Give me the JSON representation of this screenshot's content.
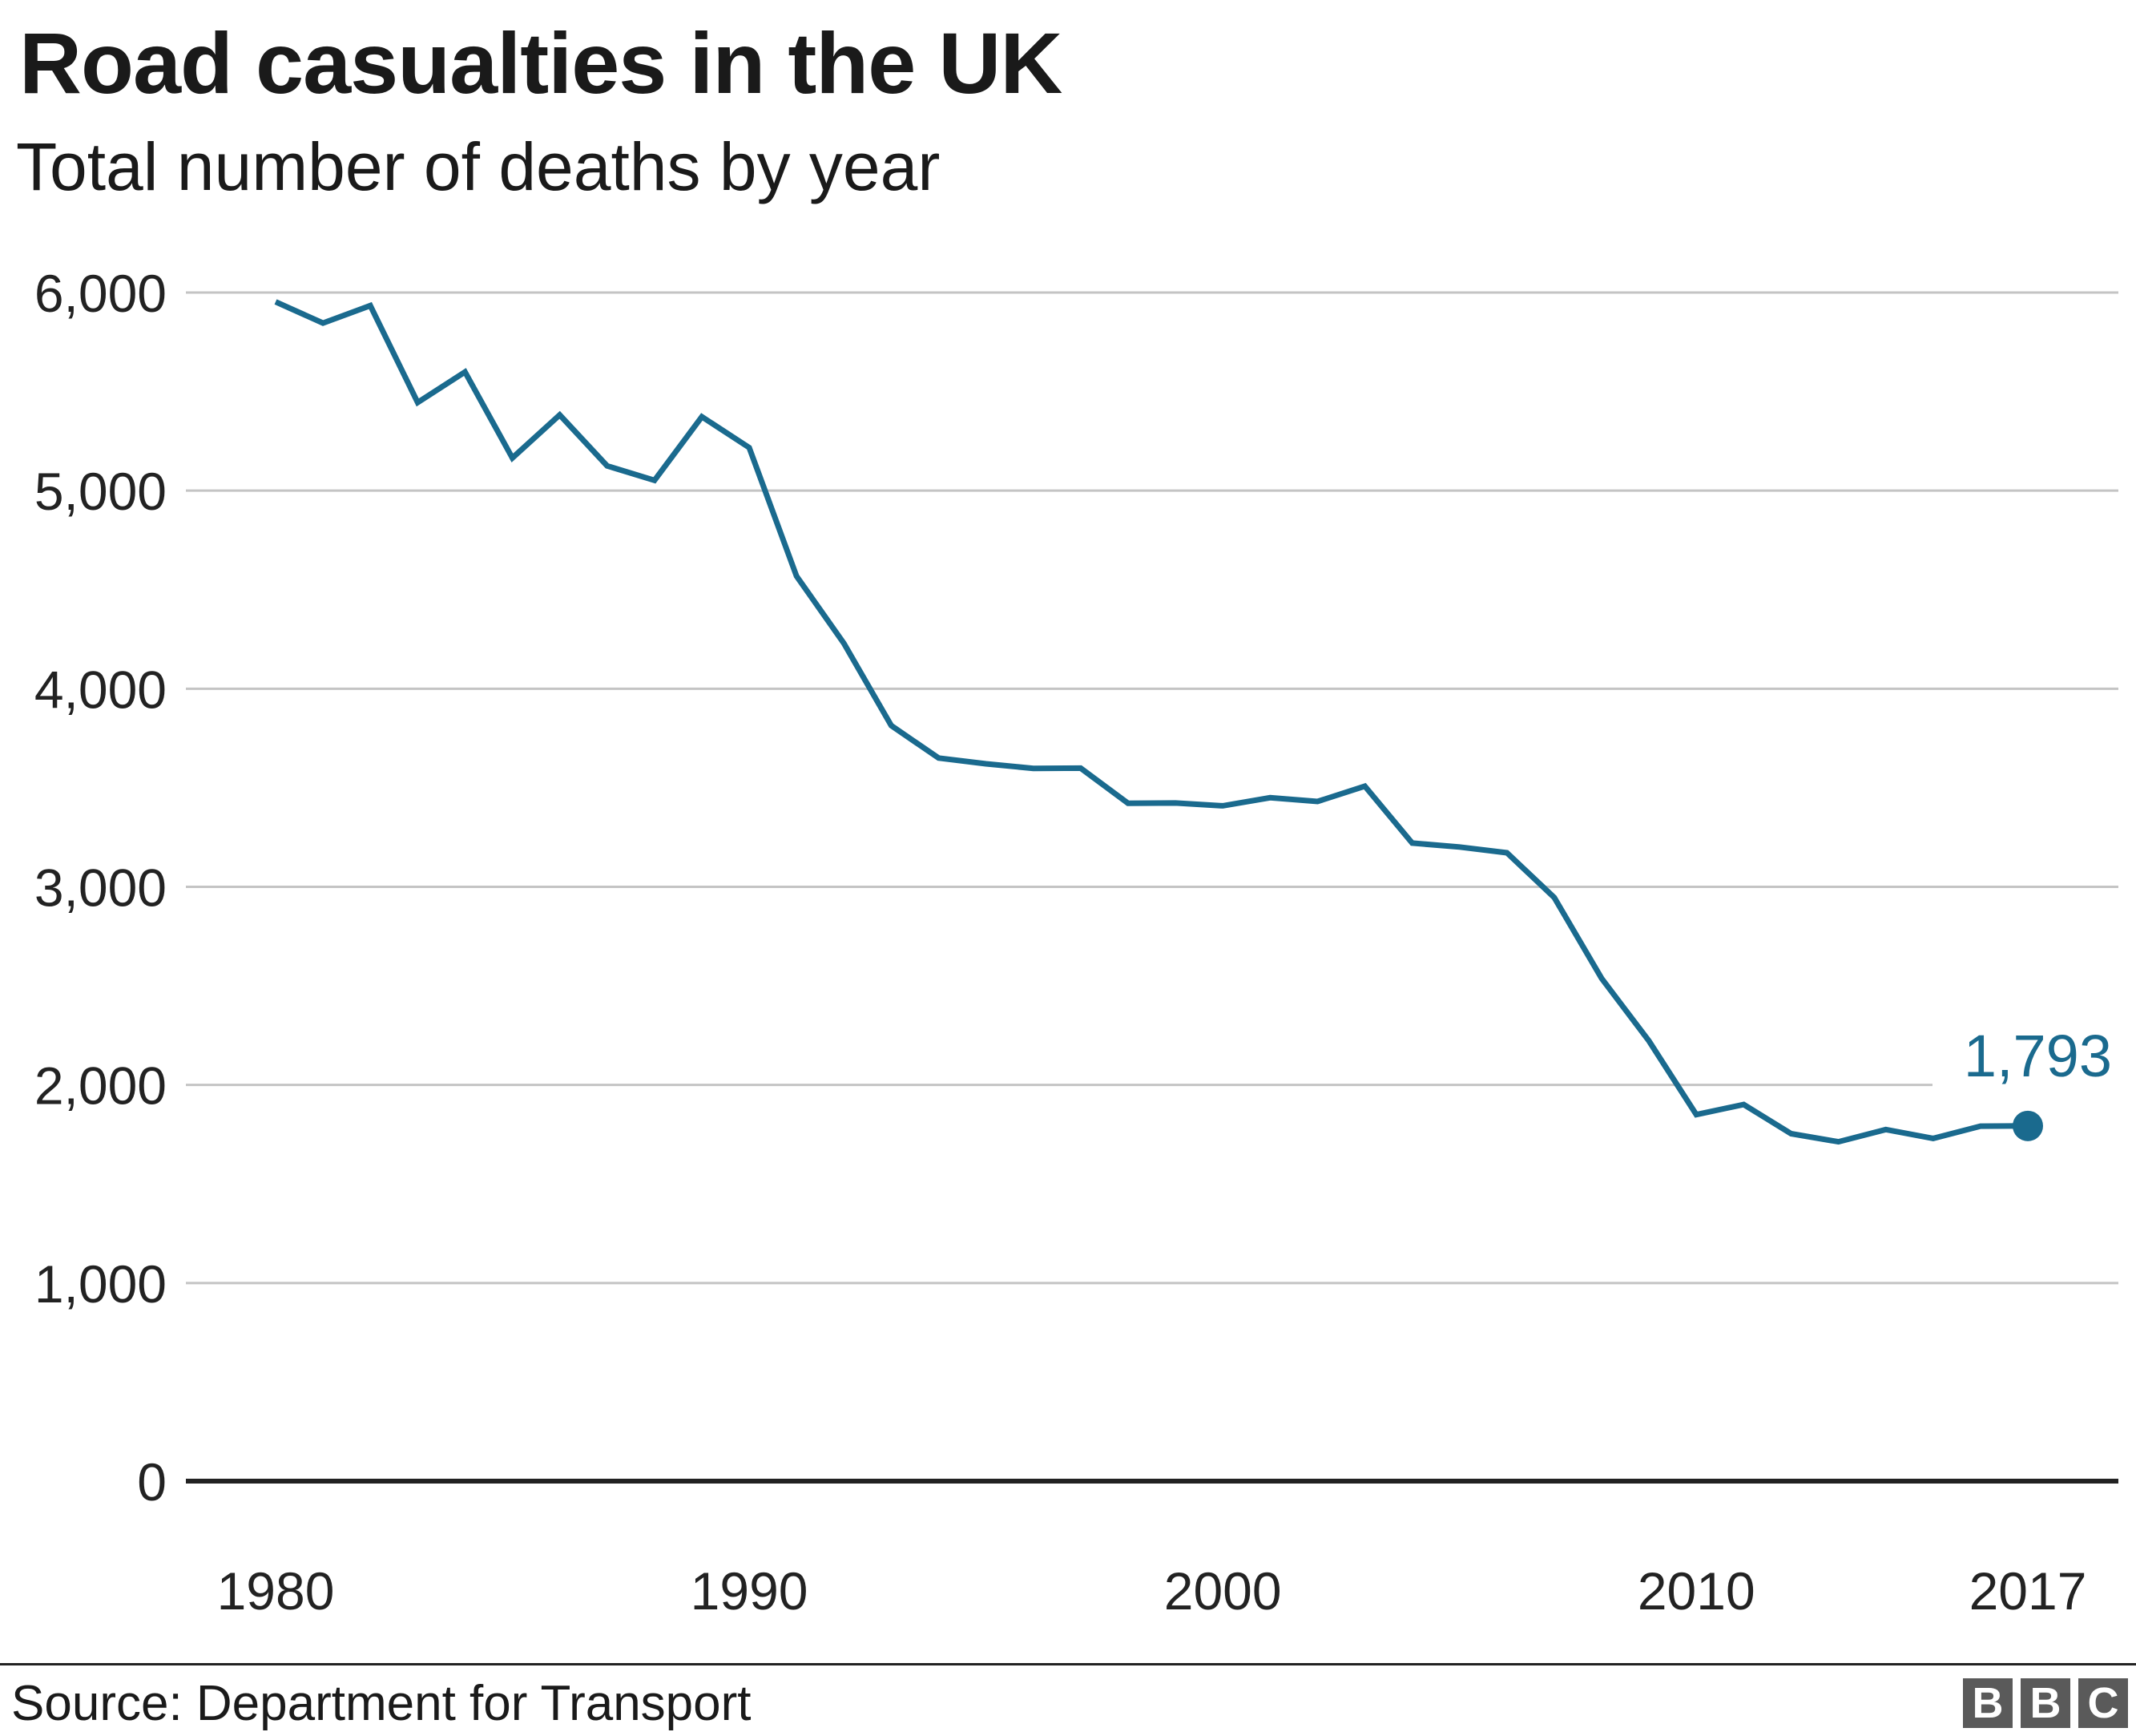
{
  "header": {
    "title": "Road casualties in the UK",
    "subtitle": "Total number of deaths by year"
  },
  "footer": {
    "source": "Source: Department for Transport",
    "logo_letters": [
      "B",
      "B",
      "C"
    ]
  },
  "colors": {
    "line": "#1a6a8e",
    "grid": "#c4c4c4",
    "baseline": "#222222",
    "logo": "#5a5a5a"
  },
  "chart_data": {
    "type": "line",
    "title": "Road casualties in the UK",
    "subtitle": "Total number of deaths by year",
    "xlabel": "",
    "ylabel": "",
    "xlim": [
      1980,
      2017
    ],
    "ylim": [
      0,
      6000
    ],
    "x_ticks": [
      1980,
      1990,
      2000,
      2010,
      2017
    ],
    "x_tick_labels": [
      "1980",
      "1990",
      "2000",
      "2010",
      "2017"
    ],
    "y_ticks": [
      0,
      1000,
      2000,
      3000,
      4000,
      5000,
      6000
    ],
    "y_tick_labels": [
      "0",
      "1,000",
      "2,000",
      "3,000",
      "4,000",
      "5,000",
      "6,000"
    ],
    "grid": true,
    "legend": "none",
    "series": [
      {
        "x": [
          1980,
          1981,
          1982,
          1983,
          1984,
          1985,
          1986,
          1987,
          1988,
          1989,
          1990,
          1991,
          1992,
          1993,
          1994,
          1995,
          1996,
          1997,
          1998,
          1999,
          2000,
          2001,
          2002,
          2003,
          2004,
          2005,
          2006,
          2007,
          2008,
          2009,
          2010,
          2011,
          2012,
          2013,
          2014,
          2015,
          2016,
          2017
        ],
        "values": [
          5953,
          5846,
          5934,
          5445,
          5599,
          5165,
          5382,
          5125,
          5052,
          5373,
          5217,
          4568,
          4229,
          3814,
          3650,
          3621,
          3598,
          3599,
          3422,
          3423,
          3409,
          3450,
          3431,
          3508,
          3221,
          3201,
          3172,
          2946,
          2538,
          2222,
          1850,
          1901,
          1754,
          1713,
          1775,
          1730,
          1792,
          1793
        ]
      }
    ],
    "annotations": [
      {
        "x": 2017,
        "y": 1793,
        "text": "1,793"
      }
    ]
  }
}
